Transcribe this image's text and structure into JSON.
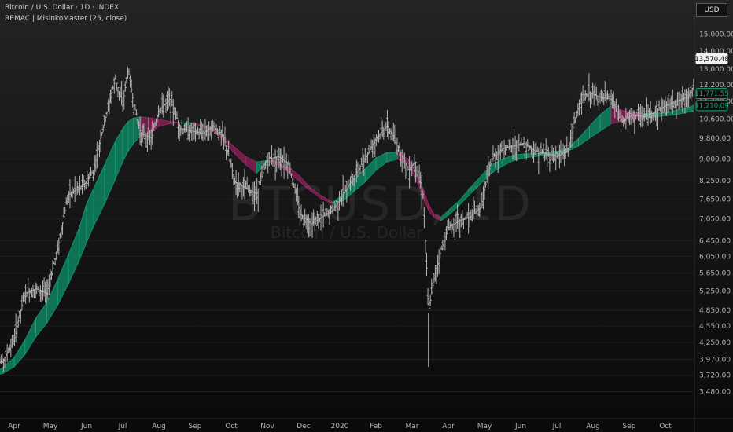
{
  "header": {
    "title": "Bitcoin / U.S. Dollar · 1D · INDEX",
    "indicator": "REMAC | MisinkoMaster (25, close)",
    "currency": "USD"
  },
  "watermark": {
    "symbol": "BTCUSD, 1D",
    "name": "Bitcoin / U.S. Dollar"
  },
  "chart_data": {
    "type": "line",
    "scale": "log",
    "ylim": [
      3300,
      16500
    ],
    "y_ticks": [
      3480,
      3720,
      3970,
      4250,
      4550,
      4850,
      5250,
      5650,
      6050,
      6450,
      7050,
      7650,
      8250,
      9000,
      9800,
      10600,
      11400,
      12200,
      13000,
      14000,
      15000
    ],
    "y_tick_labels": [
      "3,480.00",
      "3,720.00",
      "3,970.00",
      "4,250.00",
      "4,550.00",
      "4,850.00",
      "5,250.00",
      "5,650.00",
      "6,050.00",
      "6,450.00",
      "7,050.00",
      "7,650.00",
      "8,250.00",
      "9,000.00",
      "9,800.00",
      "10,600.00",
      "11,400.00",
      "12,200.00",
      "13,000.00",
      "14,000.00",
      "15,000.00"
    ],
    "x_labels": [
      "Apr",
      "May",
      "Jun",
      "Jul",
      "Aug",
      "Sep",
      "Oct",
      "Nov",
      "Dec",
      "2020",
      "Feb",
      "Mar",
      "Apr",
      "May",
      "Jun",
      "Jul",
      "Aug",
      "Sep",
      "Oct"
    ],
    "x_label_months": [
      0,
      1,
      2,
      3,
      4,
      5,
      6,
      7,
      8,
      9,
      10,
      11,
      12,
      13,
      14,
      15,
      16,
      17,
      18
    ],
    "price_series": {
      "name": "BTCUSD close",
      "month_index": [
        -0.6,
        -0.3,
        0.0,
        0.3,
        0.6,
        0.9,
        1.2,
        1.5,
        1.8,
        2.0,
        2.2,
        2.5,
        2.8,
        3.0,
        3.15,
        3.3,
        3.5,
        3.8,
        4.0,
        4.3,
        4.6,
        4.9,
        5.2,
        5.5,
        5.8,
        6.1,
        6.4,
        6.7,
        7.0,
        7.3,
        7.6,
        7.9,
        8.2,
        8.5,
        8.8,
        9.1,
        9.4,
        9.7,
        10.0,
        10.3,
        10.6,
        10.9,
        11.1,
        11.3,
        11.45,
        11.6,
        11.8,
        12.0,
        12.3,
        12.6,
        12.9,
        13.2,
        13.5,
        13.8,
        14.1,
        14.4,
        14.7,
        15.0,
        15.3,
        15.6,
        15.9,
        16.2,
        16.5,
        16.8,
        17.1,
        17.4,
        17.7,
        18.0,
        18.3,
        18.6,
        18.9,
        19.1,
        19.3
      ],
      "close": [
        3850,
        3950,
        4300,
        5200,
        5300,
        5200,
        6200,
        7800,
        8000,
        8200,
        8600,
        10500,
        12500,
        11200,
        13000,
        11300,
        10000,
        9800,
        11000,
        11500,
        10200,
        10100,
        10000,
        10300,
        9800,
        8200,
        8000,
        7800,
        9000,
        9100,
        8800,
        7200,
        6900,
        7100,
        7300,
        7800,
        8400,
        9000,
        9800,
        10300,
        9500,
        8600,
        8900,
        7800,
        4800,
        5500,
        6200,
        6800,
        7000,
        7100,
        7400,
        9000,
        9400,
        9500,
        9600,
        9300,
        9200,
        9100,
        9300,
        11200,
        11800,
        11600,
        11500,
        10500,
        10800,
        10700,
        10900,
        11200,
        11400,
        11600,
        12500,
        13200,
        13570
      ]
    },
    "band": {
      "name": "REMAC (25, close)",
      "month_index": [
        -0.6,
        -0.3,
        0.0,
        0.3,
        0.6,
        0.9,
        1.2,
        1.5,
        1.8,
        2.0,
        2.2,
        2.5,
        2.8,
        3.0,
        3.15,
        3.3,
        3.5,
        3.8,
        4.0,
        4.3,
        4.6,
        4.9,
        5.2,
        5.5,
        5.8,
        6.1,
        6.4,
        6.7,
        7.0,
        7.3,
        7.6,
        7.9,
        8.2,
        8.5,
        8.8,
        9.1,
        9.4,
        9.7,
        10.0,
        10.3,
        10.6,
        10.9,
        11.1,
        11.3,
        11.45,
        11.6,
        11.8,
        12.0,
        12.3,
        12.6,
        12.9,
        13.2,
        13.5,
        13.8,
        14.1,
        14.4,
        14.7,
        15.0,
        15.3,
        15.6,
        15.9,
        16.2,
        16.5,
        16.8,
        17.1,
        17.4,
        17.7,
        18.0,
        18.3,
        18.6,
        18.9,
        19.1,
        19.3
      ],
      "upper": [
        3720,
        3850,
        4000,
        4300,
        4700,
        5000,
        5500,
        6100,
        6800,
        7500,
        8000,
        8800,
        9700,
        10200,
        10500,
        10650,
        10700,
        10650,
        10600,
        10500,
        10450,
        10450,
        10350,
        10200,
        9850,
        9450,
        9100,
        8900,
        8950,
        8900,
        8700,
        8400,
        8000,
        7750,
        7550,
        7800,
        8300,
        8650,
        9050,
        9250,
        9250,
        9000,
        8500,
        8000,
        7500,
        7200,
        7100,
        7300,
        7600,
        8000,
        8400,
        8800,
        9000,
        9150,
        9200,
        9200,
        9250,
        9300,
        9400,
        9800,
        10300,
        10800,
        11200,
        11000,
        10900,
        10850,
        10850,
        10900,
        11000,
        11100,
        11300,
        11600,
        11800
      ],
      "lower": [
        3700,
        3750,
        3850,
        4050,
        4350,
        4600,
        4950,
        5400,
        5950,
        6400,
        6850,
        7500,
        8300,
        8900,
        9300,
        9600,
        9900,
        10050,
        10300,
        10400,
        10450,
        10400,
        10300,
        10100,
        9700,
        9200,
        8800,
        8500,
        8900,
        8800,
        8500,
        8200,
        7900,
        7650,
        7500,
        7600,
        7900,
        8200,
        8600,
        8900,
        9000,
        8800,
        8300,
        7700,
        7300,
        7100,
        7000,
        7150,
        7450,
        7800,
        8150,
        8500,
        8750,
        8950,
        9050,
        9100,
        9150,
        9200,
        9300,
        9500,
        9800,
        10100,
        10400,
        10500,
        10600,
        10650,
        10700,
        10750,
        10800,
        10900,
        11000,
        11100,
        11210
      ],
      "bull_color": "#14a87c",
      "bear_color": "#a52569"
    },
    "price_labels": [
      {
        "value": 13570.48,
        "text": "13,570.48",
        "style": "current"
      },
      {
        "value": 11771.55,
        "text": "11,771.55",
        "style": "band"
      },
      {
        "value": 11210.09,
        "text": "11,210.09",
        "style": "band"
      }
    ]
  },
  "colors": {
    "text": "#b2b5be",
    "candle": "#b4b4b4",
    "band_fill_bull": "#0f7d5c",
    "band_fill_bear": "#7a1f50",
    "grid": "#1f1f1f"
  }
}
